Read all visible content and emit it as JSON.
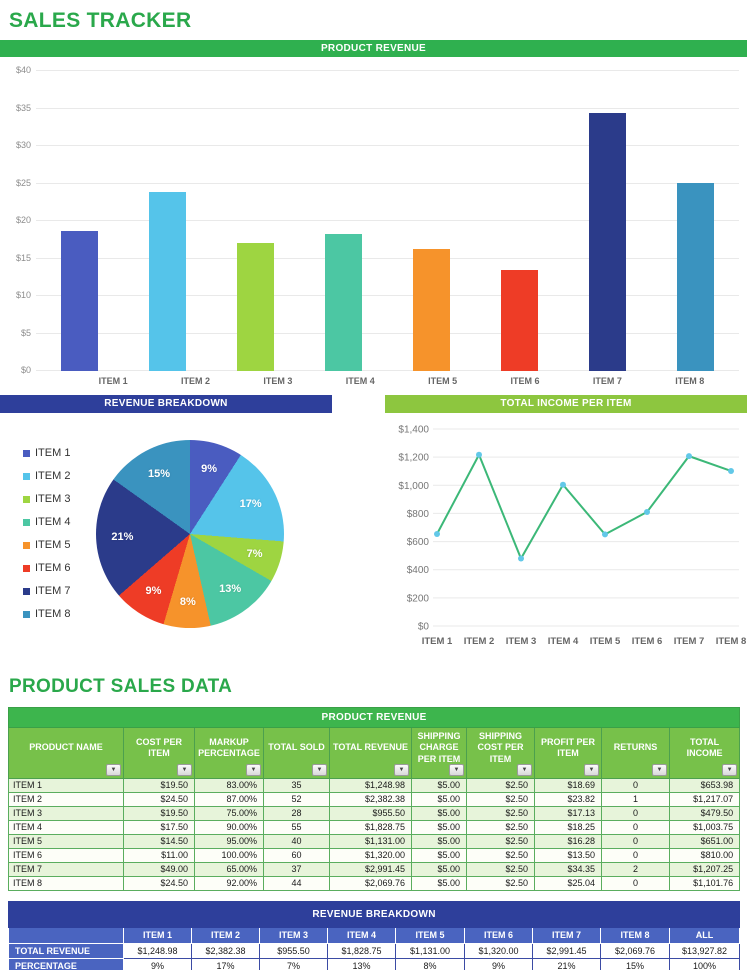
{
  "page": {
    "title": "SALES TRACKER",
    "product_sales_title": "PRODUCT SALES DATA"
  },
  "colors": {
    "accent_green": "#2aa84b",
    "band_green": "#2fb04f",
    "band_blue": "#2e3f9b",
    "band_light_green": "#8dc63f",
    "table_band_green": "#3db54d",
    "table_header_green": "#77c14a",
    "row_alt_green": "#e7f4da",
    "series": [
      "#4a5cc0",
      "#55c4ea",
      "#9ed541",
      "#4cc7a3",
      "#f6932b",
      "#ee3c26",
      "#2b3b8a",
      "#3a93bf"
    ],
    "line_stroke": "#3cb878",
    "marker_fill": "#62c8e8",
    "gridline": "#e9e9e9",
    "axis_text": "#8d8d8d",
    "xlabel_text": "#666666"
  },
  "chart_data": [
    {
      "type": "bar",
      "title": "PRODUCT REVENUE",
      "categories": [
        "ITEM 1",
        "ITEM 2",
        "ITEM 3",
        "ITEM 4",
        "ITEM 5",
        "ITEM 6",
        "ITEM 7",
        "ITEM 8"
      ],
      "values": [
        18.69,
        23.82,
        17.13,
        18.25,
        16.28,
        13.5,
        34.35,
        25.04
      ],
      "ylim": [
        0,
        40
      ],
      "ytick_values": [
        0,
        5,
        10,
        15,
        20,
        25,
        30,
        35,
        40
      ],
      "ytick_labels": [
        "$0",
        "$5",
        "$10",
        "$15",
        "$20",
        "$25",
        "$30",
        "$35",
        "$40"
      ],
      "grid": true,
      "legend_position": "none"
    },
    {
      "type": "pie",
      "title": "REVENUE BREAKDOWN",
      "categories": [
        "ITEM 1",
        "ITEM 2",
        "ITEM 3",
        "ITEM 4",
        "ITEM 5",
        "ITEM 6",
        "ITEM 7",
        "ITEM 8"
      ],
      "values": [
        9,
        17,
        7,
        13,
        8,
        9,
        21,
        15
      ],
      "slice_labels": [
        "9%",
        "17%",
        "7%",
        "13%",
        "8%",
        "9%",
        "21%",
        "15%"
      ],
      "legend_position": "left",
      "start_angle_deg": 0,
      "direction": "clockwise"
    },
    {
      "type": "line",
      "title": "TOTAL INCOME PER ITEM",
      "categories": [
        "ITEM 1",
        "ITEM 2",
        "ITEM 3",
        "ITEM 4",
        "ITEM 5",
        "ITEM 6",
        "ITEM 7",
        "ITEM 8"
      ],
      "values": [
        653.98,
        1217.07,
        479.5,
        1003.75,
        651.0,
        810.0,
        1207.25,
        1101.76
      ],
      "ylim": [
        0,
        1400
      ],
      "ytick_values": [
        0,
        200,
        400,
        600,
        800,
        1000,
        1200,
        1400
      ],
      "ytick_labels": [
        "$0",
        "$200",
        "$400",
        "$600",
        "$800",
        "$1,000",
        "$1,200",
        "$1,400"
      ],
      "grid": true,
      "legend_position": "none"
    }
  ],
  "product_table": {
    "band": "PRODUCT REVENUE",
    "columns": [
      "PRODUCT NAME",
      "COST PER ITEM",
      "MARKUP PERCENTAGE",
      "TOTAL SOLD",
      "TOTAL REVENUE",
      "SHIPPING CHARGE PER ITEM",
      "SHIPPING COST PER ITEM",
      "PROFIT PER ITEM",
      "RETURNS",
      "TOTAL INCOME"
    ],
    "filter_icon": "▼",
    "rows": [
      [
        "ITEM 1",
        "$19.50",
        "83.00%",
        "35",
        "$1,248.98",
        "$5.00",
        "$2.50",
        "$18.69",
        "0",
        "$653.98"
      ],
      [
        "ITEM 2",
        "$24.50",
        "87.00%",
        "52",
        "$2,382.38",
        "$5.00",
        "$2.50",
        "$23.82",
        "1",
        "$1,217.07"
      ],
      [
        "ITEM 3",
        "$19.50",
        "75.00%",
        "28",
        "$955.50",
        "$5.00",
        "$2.50",
        "$17.13",
        "0",
        "$479.50"
      ],
      [
        "ITEM 4",
        "$17.50",
        "90.00%",
        "55",
        "$1,828.75",
        "$5.00",
        "$2.50",
        "$18.25",
        "0",
        "$1,003.75"
      ],
      [
        "ITEM 5",
        "$14.50",
        "95.00%",
        "40",
        "$1,131.00",
        "$5.00",
        "$2.50",
        "$16.28",
        "0",
        "$651.00"
      ],
      [
        "ITEM 6",
        "$11.00",
        "100.00%",
        "60",
        "$1,320.00",
        "$5.00",
        "$2.50",
        "$13.50",
        "0",
        "$810.00"
      ],
      [
        "ITEM 7",
        "$49.00",
        "65.00%",
        "37",
        "$2,991.45",
        "$5.00",
        "$2.50",
        "$34.35",
        "2",
        "$1,207.25"
      ],
      [
        "ITEM 8",
        "$24.50",
        "92.00%",
        "44",
        "$2,069.76",
        "$5.00",
        "$2.50",
        "$25.04",
        "0",
        "$1,101.76"
      ]
    ]
  },
  "breakdown_table": {
    "band": "REVENUE BREAKDOWN",
    "columns": [
      "",
      "ITEM 1",
      "ITEM 2",
      "ITEM 3",
      "ITEM 4",
      "ITEM 5",
      "ITEM 6",
      "ITEM 7",
      "ITEM 8",
      "ALL"
    ],
    "rows": [
      {
        "label": "TOTAL REVENUE",
        "values": [
          "$1,248.98",
          "$2,382.38",
          "$955.50",
          "$1,828.75",
          "$1,131.00",
          "$1,320.00",
          "$2,991.45",
          "$2,069.76",
          "$13,927.82"
        ]
      },
      {
        "label": "PERCENTAGE",
        "values": [
          "9%",
          "17%",
          "7%",
          "13%",
          "8%",
          "9%",
          "21%",
          "15%",
          "100%"
        ]
      }
    ]
  }
}
